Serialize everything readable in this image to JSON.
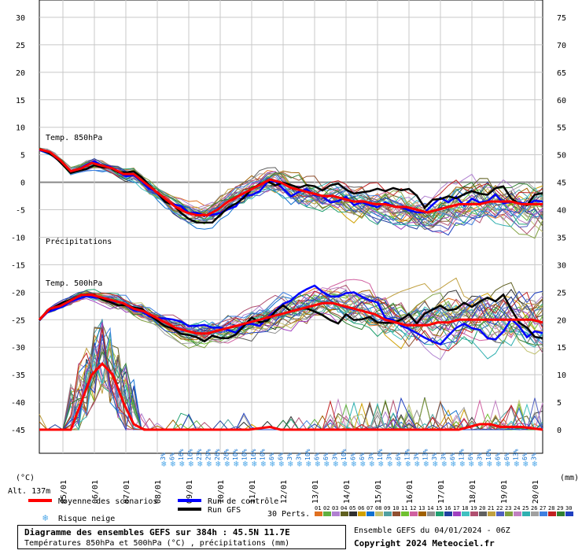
{
  "chart_data": {
    "type": "line",
    "title": "Diagramme des ensembles GEFS sur 384h : 45.5N 11.7E",
    "subtitle": "Températures 850hPa et 500hPa (°C) , précipitations (mm)",
    "left_axis": {
      "label": "(°C)",
      "min": -45,
      "max": 30,
      "ticks": [
        30,
        25,
        20,
        15,
        10,
        5,
        0,
        -5,
        -10,
        -15,
        -20,
        -25,
        -30,
        -35,
        -40,
        -45
      ]
    },
    "right_axis": {
      "label": "(mm)",
      "min": 0,
      "max": 75,
      "ticks": [
        75,
        70,
        65,
        60,
        55,
        50,
        45,
        40,
        35,
        30,
        25,
        20,
        15,
        10,
        5,
        0
      ]
    },
    "x_ticks": [
      "05/01",
      "06/01",
      "07/01",
      "08/01",
      "09/01",
      "10/01",
      "11/01",
      "12/01",
      "13/01",
      "14/01",
      "15/01",
      "16/01",
      "17/01",
      "18/01",
      "19/01",
      "20/01"
    ],
    "altitude": "Alt. 137m",
    "panel_labels": {
      "t850": "Temp. 850hPa",
      "precip": "Précipitations",
      "t500": "Temp. 500hPa"
    },
    "series": [
      {
        "name": "Moyenne des scénarios",
        "color": "#ff0000",
        "role": "mean"
      },
      {
        "name": "Run de contrôle",
        "color": "#0000ff",
        "role": "control"
      },
      {
        "name": "Run GFS",
        "color": "#000000",
        "role": "gfs"
      }
    ],
    "mean_t850": [
      [
        0,
        6
      ],
      [
        8,
        5.5
      ],
      [
        16,
        4
      ],
      [
        24,
        2
      ],
      [
        32,
        2.5
      ],
      [
        40,
        3.5
      ],
      [
        48,
        3
      ],
      [
        56,
        2.5
      ],
      [
        64,
        1.5
      ],
      [
        72,
        1.5
      ],
      [
        80,
        0
      ],
      [
        88,
        -1.5
      ],
      [
        96,
        -3
      ],
      [
        104,
        -4.5
      ],
      [
        112,
        -5.5
      ],
      [
        120,
        -6
      ],
      [
        128,
        -6
      ],
      [
        136,
        -5
      ],
      [
        144,
        -3.5
      ],
      [
        152,
        -2.5
      ],
      [
        160,
        -1.5
      ],
      [
        168,
        -0.5
      ],
      [
        176,
        0.5
      ],
      [
        184,
        0
      ],
      [
        192,
        -1
      ],
      [
        200,
        -1.5
      ],
      [
        208,
        -2
      ],
      [
        216,
        -2.5
      ],
      [
        224,
        -2.5
      ],
      [
        232,
        -3
      ],
      [
        240,
        -3.5
      ],
      [
        248,
        -3.5
      ],
      [
        256,
        -4
      ],
      [
        264,
        -4
      ],
      [
        272,
        -4.5
      ],
      [
        280,
        -4.5
      ],
      [
        288,
        -5
      ],
      [
        296,
        -5.5
      ],
      [
        304,
        -5
      ],
      [
        312,
        -4.5
      ],
      [
        320,
        -4
      ],
      [
        328,
        -4
      ],
      [
        336,
        -4
      ],
      [
        344,
        -3.5
      ],
      [
        352,
        -3.5
      ],
      [
        360,
        -3.5
      ],
      [
        368,
        -4
      ],
      [
        376,
        -4
      ],
      [
        384,
        -4
      ]
    ],
    "mean_t500": [
      [
        0,
        -25
      ],
      [
        8,
        -23
      ],
      [
        16,
        -22.5
      ],
      [
        24,
        -21.5
      ],
      [
        32,
        -20.5
      ],
      [
        40,
        -20.5
      ],
      [
        48,
        -21
      ],
      [
        56,
        -21.5
      ],
      [
        64,
        -22
      ],
      [
        72,
        -23
      ],
      [
        80,
        -23.5
      ],
      [
        88,
        -24.5
      ],
      [
        96,
        -25.5
      ],
      [
        104,
        -26.5
      ],
      [
        112,
        -27
      ],
      [
        120,
        -27.5
      ],
      [
        128,
        -27.5
      ],
      [
        136,
        -27
      ],
      [
        144,
        -26.5
      ],
      [
        152,
        -26
      ],
      [
        160,
        -25.5
      ],
      [
        168,
        -25
      ],
      [
        176,
        -24.5
      ],
      [
        184,
        -24
      ],
      [
        192,
        -23.5
      ],
      [
        200,
        -23
      ],
      [
        208,
        -22.5
      ],
      [
        216,
        -22
      ],
      [
        224,
        -22
      ],
      [
        232,
        -22.5
      ],
      [
        240,
        -23
      ],
      [
        248,
        -23.5
      ],
      [
        256,
        -24
      ],
      [
        264,
        -25
      ],
      [
        272,
        -25.5
      ],
      [
        280,
        -26
      ],
      [
        288,
        -26
      ],
      [
        296,
        -26
      ],
      [
        304,
        -25.5
      ],
      [
        312,
        -25.5
      ],
      [
        320,
        -25
      ],
      [
        328,
        -25
      ],
      [
        336,
        -25
      ],
      [
        344,
        -25
      ],
      [
        352,
        -25
      ],
      [
        360,
        -25
      ],
      [
        368,
        -25
      ],
      [
        376,
        -25
      ],
      [
        384,
        -25.5
      ]
    ],
    "mean_precip_mm": [
      [
        0,
        0
      ],
      [
        16,
        0
      ],
      [
        24,
        0
      ],
      [
        32,
        5
      ],
      [
        40,
        10
      ],
      [
        48,
        12
      ],
      [
        56,
        10
      ],
      [
        64,
        5
      ],
      [
        72,
        1
      ],
      [
        80,
        0
      ],
      [
        96,
        0
      ],
      [
        160,
        0
      ],
      [
        176,
        0.5
      ],
      [
        184,
        0
      ],
      [
        200,
        0
      ],
      [
        232,
        0
      ],
      [
        256,
        0
      ],
      [
        304,
        0
      ],
      [
        320,
        0
      ],
      [
        336,
        1
      ],
      [
        344,
        1
      ],
      [
        352,
        0.5
      ],
      [
        368,
        0.5
      ],
      [
        384,
        0
      ]
    ],
    "snow_risk_labels": [
      "3%",
      "6%",
      "16%",
      "16%",
      "23%",
      "29%",
      "26%",
      "26%",
      "10%",
      "10%",
      "16%",
      "10%",
      "6%",
      "6%",
      "3%",
      "3%",
      "10%",
      "6%",
      "6%",
      "3%",
      "10%",
      "6%",
      "6%",
      "3%",
      "10%",
      "3%",
      "6%",
      "13%",
      "3%",
      "13%",
      "3%",
      "3%",
      "6%",
      "13%",
      "6%",
      "3%",
      "10%",
      "6%",
      "6%",
      "13%",
      "6%",
      "3%",
      "13%"
    ],
    "legend": {
      "mean": "Moyenne des scénarios",
      "control": "Run de contrôle",
      "gfs": "Run GFS",
      "snow": "Risque neige",
      "perts": "30 Perts."
    },
    "pert_labels": [
      "01",
      "02",
      "03",
      "04",
      "05",
      "06",
      "07",
      "08",
      "09",
      "10",
      "11",
      "12",
      "13",
      "14",
      "15",
      "16",
      "17",
      "18",
      "19",
      "20",
      "21",
      "22",
      "23",
      "24",
      "25",
      "26",
      "27",
      "28",
      "29",
      "30"
    ],
    "pert_colors": [
      "#e07020",
      "#60b040",
      "#b080d0",
      "#606020",
      "#303030",
      "#d0a000",
      "#1070d0",
      "#c0c070",
      "#50a0a0",
      "#905030",
      "#70c030",
      "#d060a0",
      "#a06000",
      "#909090",
      "#20a070",
      "#2040a0",
      "#a040c0",
      "#40c0c0",
      "#b05070",
      "#606060",
      "#c0a040",
      "#5060c0",
      "#80a040",
      "#c080c0",
      "#30b0b0",
      "#a0a0a0",
      "#4080e0",
      "#c02020",
      "#308030",
      "#2040c0"
    ]
  },
  "footer": {
    "ensemble": "Ensemble GEFS du 04/01/2024 - 06Z",
    "copyright": "Copyright 2024 Meteociel.fr"
  }
}
